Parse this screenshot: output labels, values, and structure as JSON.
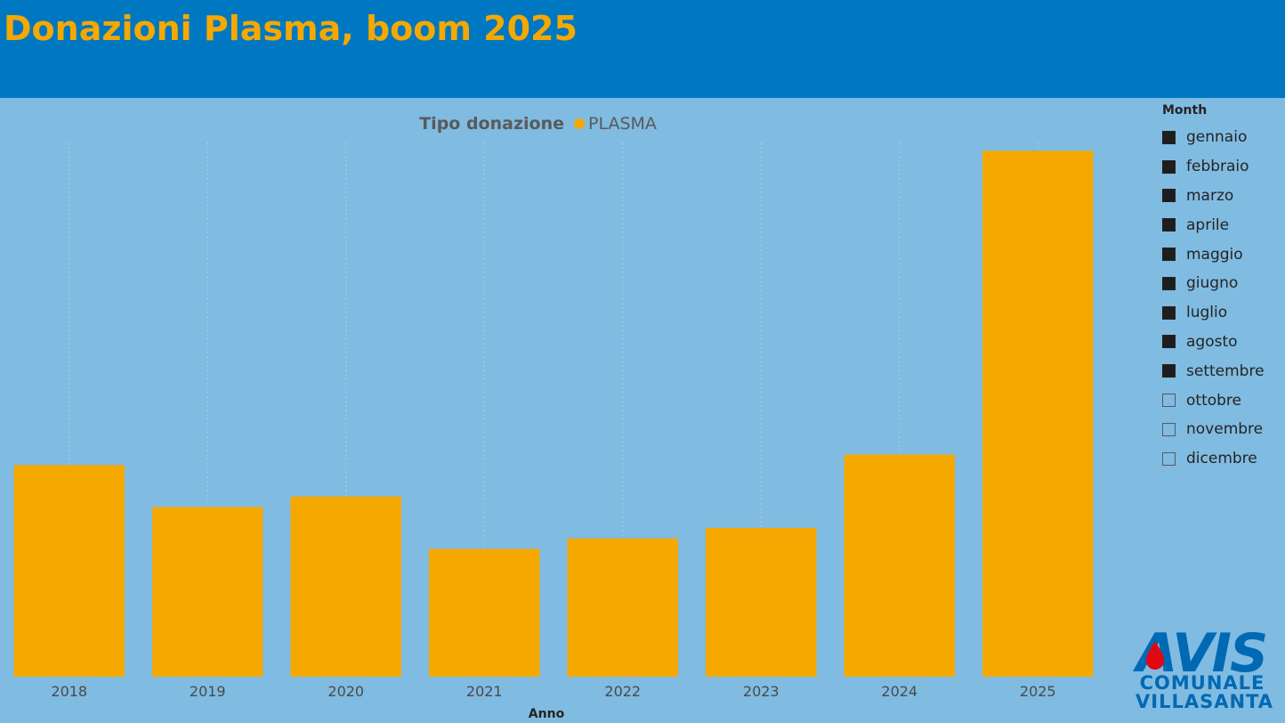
{
  "header": {
    "title": "Donazioni Plasma, boom 2025"
  },
  "chart_data": {
    "type": "bar",
    "legend": {
      "title": "Tipo donazione",
      "entries": [
        {
          "name": "PLASMA",
          "color": "#f5a800"
        }
      ],
      "placement": "top-center"
    },
    "categories": [
      "2018",
      "2019",
      "2020",
      "2021",
      "2022",
      "2023",
      "2024",
      "2025"
    ],
    "series": [
      {
        "name": "PLASMA",
        "values": [
          202,
          162,
          172,
          122,
          132,
          142,
          212,
          502
        ],
        "color": "#f5a800"
      }
    ],
    "xlabel": "Anno",
    "ylabel": "",
    "ylim": [
      0,
      510
    ],
    "grid": {
      "vertical_dotted": true
    }
  },
  "slicer": {
    "heading": "Month",
    "items": [
      {
        "label": "gennaio",
        "checked": true
      },
      {
        "label": "febbraio",
        "checked": true
      },
      {
        "label": "marzo",
        "checked": true
      },
      {
        "label": "aprile",
        "checked": true
      },
      {
        "label": "maggio",
        "checked": true
      },
      {
        "label": "giugno",
        "checked": true
      },
      {
        "label": "luglio",
        "checked": true
      },
      {
        "label": "agosto",
        "checked": true
      },
      {
        "label": "settembre",
        "checked": true
      },
      {
        "label": "ottobre",
        "checked": false
      },
      {
        "label": "novembre",
        "checked": false
      },
      {
        "label": "dicembre",
        "checked": false
      }
    ]
  },
  "logo": {
    "brand": "AVIS",
    "line1": "COMUNALE",
    "line2": "VILLASANTA",
    "color": "#0069b4",
    "drop_color": "#e30613"
  }
}
